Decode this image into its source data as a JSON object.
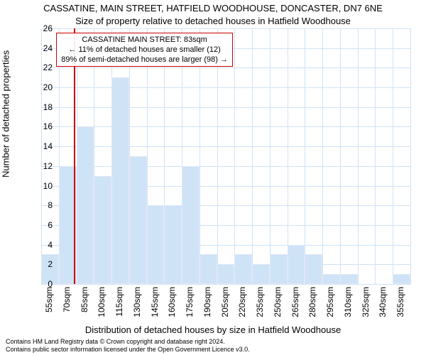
{
  "title1": "CASSATINE, MAIN STREET, HATFIELD WOODHOUSE, DONCASTER, DN7 6NE",
  "title2": "Size of property relative to detached houses in Hatfield Woodhouse",
  "ylabel": "Number of detached properties",
  "xlabel": "Distribution of detached houses by size in Hatfield Woodhouse",
  "footer_line1": "Contains HM Land Registry data © Crown copyright and database right 2024.",
  "footer_line2": "Contains public sector information licensed under the Open Government Licence v3.0.",
  "chart": {
    "type": "histogram",
    "ylim": [
      0,
      26
    ],
    "ytick_step": 2,
    "background_color": "#ffffff",
    "grid_color": "#cfe3f7",
    "bar_fill": "#cfe3f7",
    "bar_border": "#e0e8f5",
    "marker_color": "#cc0000",
    "marker_position_sqm": 83,
    "x_start": 55,
    "x_step": 15,
    "x_suffix": "sqm",
    "x_count": 21,
    "values": [
      3,
      12,
      16,
      11,
      21,
      13,
      8,
      8,
      12,
      3,
      2,
      3,
      2,
      3,
      4,
      3,
      1,
      1,
      0,
      0,
      1
    ],
    "info_box": {
      "line1": "CASSATINE MAIN STREET: 83sqm",
      "line2": "← 11% of detached houses are smaller (12)",
      "line3": "89% of semi-detached houses are larger (98) →"
    }
  }
}
